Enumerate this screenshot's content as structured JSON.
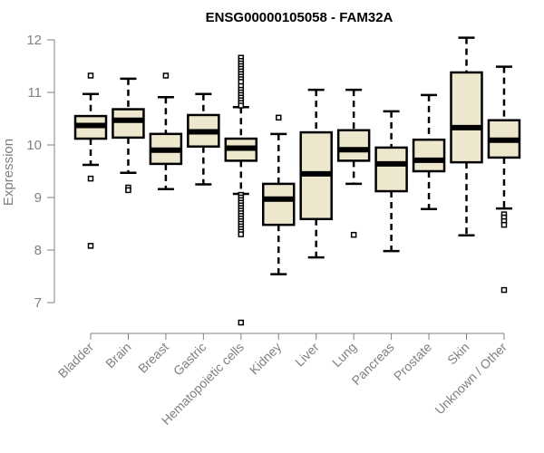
{
  "chart_data": {
    "type": "boxplot",
    "title": "ENSG00000105058 - FAM32A",
    "xlabel": "",
    "ylabel": "Expression",
    "ylim": [
      6.6,
      12.1
    ],
    "yticks": [
      7,
      8,
      9,
      10,
      11,
      12
    ],
    "box_color": "#EDE7CD",
    "categories": [
      "Bladder",
      "Brain",
      "Breast",
      "Gastric",
      "Hematopoietic cells",
      "Kidney",
      "Liver",
      "Lung",
      "Pancreas",
      "Prostate",
      "Skin",
      "Unknown / Other"
    ],
    "boxes": [
      {
        "whisker_low": 9.62,
        "q1": 10.12,
        "median": 10.37,
        "q3": 10.55,
        "whisker_high": 10.97,
        "outliers": [
          11.32,
          9.36,
          8.08
        ]
      },
      {
        "whisker_low": 9.47,
        "q1": 10.14,
        "median": 10.47,
        "q3": 10.68,
        "whisker_high": 11.26,
        "outliers": [
          9.19,
          9.14
        ]
      },
      {
        "whisker_low": 9.16,
        "q1": 9.64,
        "median": 9.9,
        "q3": 10.21,
        "whisker_high": 10.91,
        "outliers": [
          11.32
        ]
      },
      {
        "whisker_low": 9.25,
        "q1": 9.97,
        "median": 10.25,
        "q3": 10.57,
        "whisker_high": 10.97,
        "outliers": []
      },
      {
        "whisker_low": 9.07,
        "q1": 9.7,
        "median": 9.94,
        "q3": 10.12,
        "whisker_high": 10.72,
        "outliers": [
          11.66,
          11.6,
          11.55,
          11.5,
          11.45,
          11.4,
          11.35,
          11.3,
          11.25,
          11.2,
          11.12,
          11.05,
          11.0,
          10.95,
          10.9,
          10.85,
          10.8,
          10.75,
          9.05,
          9.0,
          8.95,
          8.9,
          8.85,
          8.8,
          8.75,
          8.7,
          8.65,
          8.6,
          8.55,
          8.5,
          8.45,
          8.4,
          8.35,
          8.3,
          6.62
        ]
      },
      {
        "whisker_low": 7.54,
        "q1": 8.48,
        "median": 8.97,
        "q3": 9.26,
        "whisker_high": 10.21,
        "outliers": [
          10.52
        ]
      },
      {
        "whisker_low": 7.86,
        "q1": 8.59,
        "median": 9.45,
        "q3": 10.24,
        "whisker_high": 11.05,
        "outliers": []
      },
      {
        "whisker_low": 9.26,
        "q1": 9.7,
        "median": 9.91,
        "q3": 10.28,
        "whisker_high": 11.05,
        "outliers": [
          8.29
        ]
      },
      {
        "whisker_low": 7.98,
        "q1": 9.12,
        "median": 9.64,
        "q3": 9.95,
        "whisker_high": 10.64,
        "outliers": []
      },
      {
        "whisker_low": 8.78,
        "q1": 9.5,
        "median": 9.71,
        "q3": 10.1,
        "whisker_high": 10.95,
        "outliers": []
      },
      {
        "whisker_low": 8.28,
        "q1": 9.67,
        "median": 10.33,
        "q3": 11.38,
        "whisker_high": 12.04,
        "outliers": []
      },
      {
        "whisker_low": 8.79,
        "q1": 9.76,
        "median": 10.09,
        "q3": 10.47,
        "whisker_high": 11.49,
        "outliers": [
          8.68,
          8.62,
          8.55,
          8.48,
          7.24
        ]
      }
    ]
  }
}
